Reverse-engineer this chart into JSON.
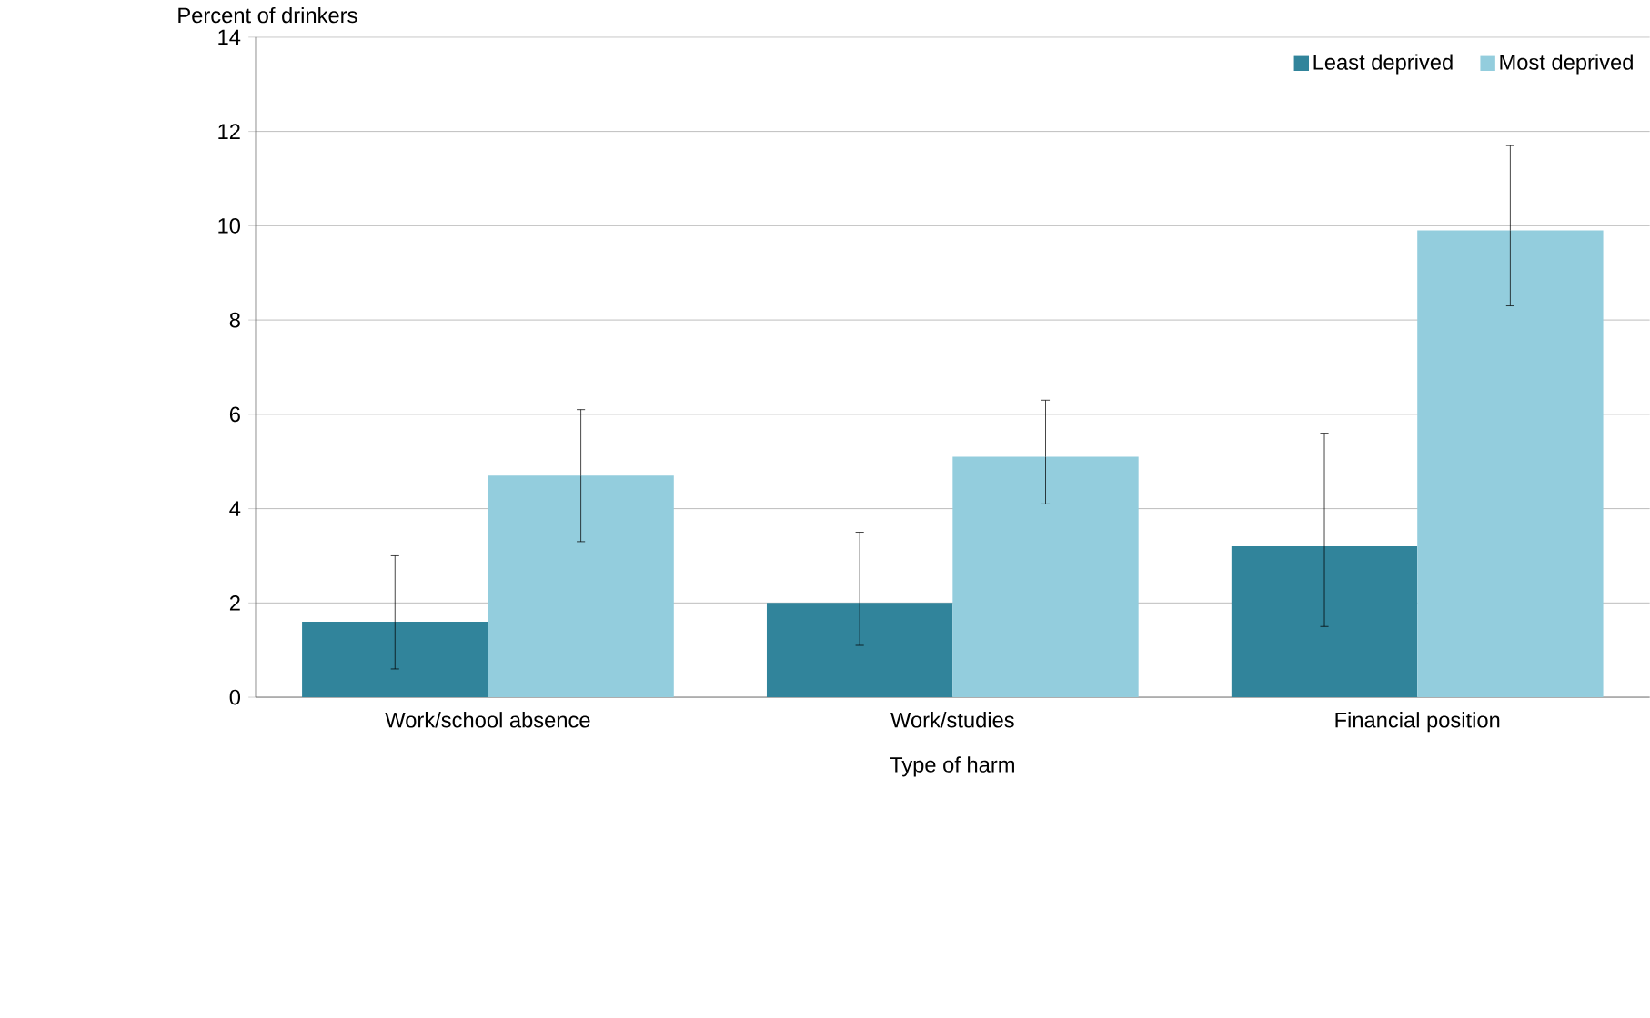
{
  "chart_data": {
    "type": "bar",
    "xlabel": "Type of harm",
    "ylabel": "Percent of drinkers",
    "categories": [
      "Work/school absence",
      "Work/studies",
      "Financial position"
    ],
    "series": [
      {
        "name": "Least deprived",
        "color": "#31849b",
        "values": [
          1.6,
          2.0,
          3.2
        ],
        "errors": [
          [
            0.6,
            3.0
          ],
          [
            1.1,
            3.5
          ],
          [
            1.5,
            5.6
          ]
        ]
      },
      {
        "name": "Most deprived",
        "color": "#93cddd",
        "values": [
          4.7,
          5.1,
          9.9
        ],
        "errors": [
          [
            3.3,
            6.1
          ],
          [
            4.1,
            6.3
          ],
          [
            8.3,
            11.7
          ]
        ]
      }
    ],
    "ylim": [
      0,
      14
    ],
    "yticks": [
      0,
      2,
      4,
      6,
      8,
      10,
      12,
      14
    ],
    "grid": "y",
    "legend": "top right"
  }
}
